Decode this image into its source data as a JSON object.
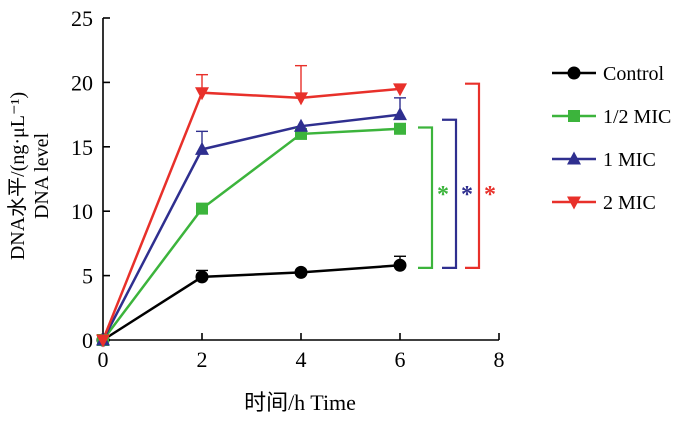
{
  "chart_data": {
    "type": "line",
    "xlabel": "时间/h Time",
    "ylabel_line1": "DNA水平/(ng·μL⁻¹)",
    "ylabel_line2": "DNA level",
    "xlim": [
      0,
      8
    ],
    "ylim": [
      0,
      25
    ],
    "x_ticks": [
      0,
      2,
      4,
      6,
      8
    ],
    "y_ticks": [
      0,
      5,
      10,
      15,
      20,
      25
    ],
    "grid": false,
    "legend_position": "right",
    "x": [
      0,
      2,
      4,
      6
    ],
    "series": [
      {
        "name": "Control",
        "values": [
          0,
          4.9,
          5.25,
          5.8
        ],
        "errors": [
          0,
          0.5,
          0,
          0.7
        ],
        "color": "#000000",
        "marker": "circle"
      },
      {
        "name": "1/2 MIC",
        "values": [
          0,
          10.2,
          16.0,
          16.4
        ],
        "errors": [
          0,
          0,
          0,
          0
        ],
        "color": "#3cb43c",
        "marker": "square"
      },
      {
        "name": "1 MIC",
        "values": [
          0,
          14.8,
          16.6,
          17.5
        ],
        "errors": [
          0,
          1.4,
          0,
          1.3
        ],
        "color": "#2f2f8f",
        "marker": "triangle-up"
      },
      {
        "name": "2 MIC",
        "values": [
          0,
          19.2,
          18.8,
          19.5
        ],
        "errors": [
          0,
          1.4,
          2.5,
          0
        ],
        "color": "#e8302a",
        "marker": "triangle-down"
      }
    ],
    "significance": [
      {
        "label": "*",
        "color": "#3cb43c",
        "from": 5.6,
        "to": 16.5
      },
      {
        "label": "*",
        "color": "#2f2f8f",
        "from": 5.6,
        "to": 17.1
      },
      {
        "label": "*",
        "color": "#e8302a",
        "from": 5.6,
        "to": 19.9
      }
    ]
  }
}
